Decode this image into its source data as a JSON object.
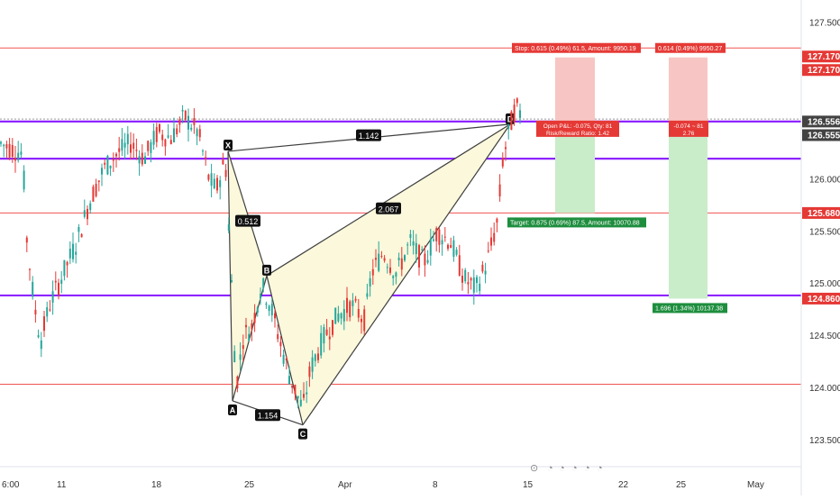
{
  "chart_data": {
    "type": "candlestick",
    "ylim": [
      123.25,
      127.72
    ],
    "y_ticks": [
      123.5,
      124.0,
      124.5,
      125.0,
      125.5,
      126.0,
      127.5
    ],
    "y_tick_labels": [
      "123.500",
      "124.000",
      "124.500",
      "125.000",
      "125.500",
      "126.000",
      "127.500"
    ],
    "x_tick_labels": [
      "6:00",
      "11",
      "18",
      "25",
      "Apr",
      "8",
      "15",
      "22",
      "25",
      "May"
    ],
    "price_badges": [
      {
        "label": "127.170",
        "value": 127.17,
        "color": "#e53935"
      },
      {
        "label": "127.170",
        "value": 127.17,
        "color": "#e53935"
      },
      {
        "label": "126.556",
        "value": 126.556,
        "color": "#424242"
      },
      {
        "label": "126.555",
        "value": 126.555,
        "color": "#424242"
      },
      {
        "label": "125.680",
        "value": 125.68,
        "color": "#e53935"
      },
      {
        "label": "124.860",
        "value": 124.86,
        "color": "#e53935"
      }
    ],
    "horizontal_lines": [
      {
        "value": 127.26,
        "color": "#ef5350",
        "style": "thin"
      },
      {
        "value": 126.58,
        "color": "#9e9e9e",
        "style": "dotted"
      },
      {
        "value": 126.556,
        "color": "#8e24ff",
        "style": "thick"
      },
      {
        "value": 126.2,
        "color": "#8e24ff",
        "style": "thick"
      },
      {
        "value": 125.68,
        "color": "#ef5350",
        "style": "thin"
      },
      {
        "value": 124.89,
        "color": "#8e24ff",
        "style": "thick"
      },
      {
        "value": 124.04,
        "color": "#ef5350",
        "style": "thin"
      }
    ],
    "pattern": {
      "points": [
        {
          "label": "X",
          "value": 126.27
        },
        {
          "label": "A",
          "value": 123.88
        },
        {
          "label": "B",
          "value": 125.08
        },
        {
          "label": "C",
          "value": 123.65
        },
        {
          "label": "D",
          "value": 126.53
        }
      ],
      "ratios": [
        "1.142",
        "0.512",
        "2.067",
        "1.154"
      ]
    },
    "positions": [
      {
        "stop_label": "Stop: 0.615 (0.49%) 61.5, Amount: 9950.19",
        "info_lines": [
          "Open P&L: -0.075, Qty: 81",
          "Risk/Reward Ratio: 1.42"
        ],
        "target_label": "Target: 0.875 (0.69%) 87.5, Amount: 10070.88",
        "entry": 126.556,
        "stop": 127.17,
        "target": 125.68
      },
      {
        "stop_label": "0.614 (0.49%) 9950.27",
        "info_lines": [
          "-0.074 ~ 81",
          "2.76"
        ],
        "target_label": "1.696 (1.34%) 10137.38",
        "entry": 126.556,
        "stop": 127.17,
        "target": 124.86
      }
    ],
    "colors": {
      "up": "#26a69a",
      "down": "#e53935",
      "pattern_line": "#3f3f3f",
      "pattern_fill": "#fbf8dc",
      "stop_zone": "#f7c5c3",
      "target_zone": "#c9ecc9"
    }
  }
}
